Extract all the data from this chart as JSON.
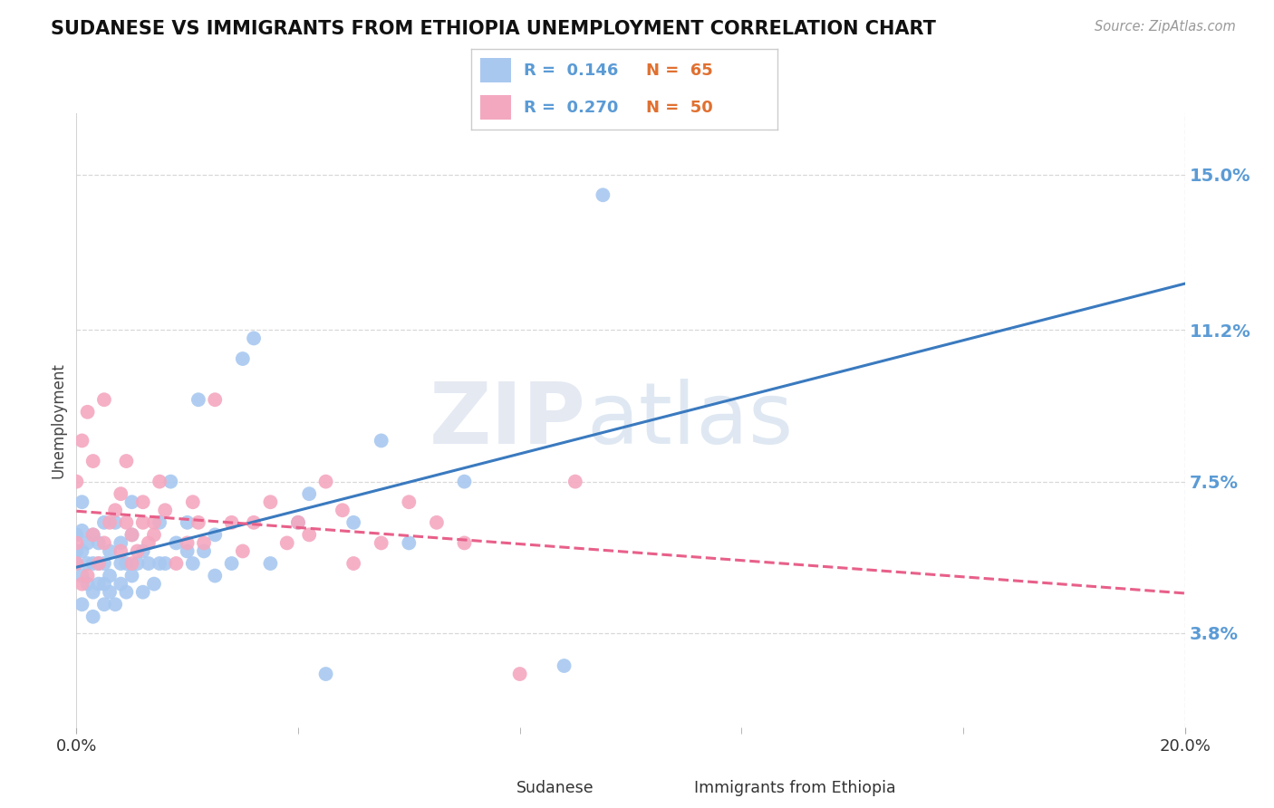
{
  "title": "SUDANESE VS IMMIGRANTS FROM ETHIOPIA UNEMPLOYMENT CORRELATION CHART",
  "source": "Source: ZipAtlas.com",
  "ylabel": "Unemployment",
  "yticks": [
    3.8,
    7.5,
    11.2,
    15.0
  ],
  "ytick_labels": [
    "3.8%",
    "7.5%",
    "11.2%",
    "15.0%"
  ],
  "xmin": 0.0,
  "xmax": 20.0,
  "ymin": 1.5,
  "ymax": 16.5,
  "sudanese_R": "0.146",
  "sudanese_N": "65",
  "ethiopia_R": "0.270",
  "ethiopia_N": "50",
  "sudanese_color": "#a8c8f0",
  "ethiopia_color": "#f4a8c0",
  "sudanese_line_color": "#3a7abf",
  "ethiopia_line_color": "#e8608a",
  "legend_label_1": "Sudanese",
  "legend_label_2": "Immigrants from Ethiopia",
  "watermark_zip": "ZIP",
  "watermark_atlas": "atlas",
  "background_color": "#ffffff",
  "grid_color": "#d8d8d8",
  "sudanese_x": [
    0.0,
    0.0,
    0.0,
    0.1,
    0.1,
    0.1,
    0.1,
    0.1,
    0.2,
    0.2,
    0.2,
    0.3,
    0.3,
    0.3,
    0.3,
    0.4,
    0.4,
    0.4,
    0.5,
    0.5,
    0.5,
    0.5,
    0.6,
    0.6,
    0.6,
    0.7,
    0.7,
    0.8,
    0.8,
    0.8,
    0.9,
    0.9,
    1.0,
    1.0,
    1.0,
    1.1,
    1.2,
    1.2,
    1.3,
    1.4,
    1.5,
    1.5,
    1.6,
    1.7,
    1.8,
    2.0,
    2.0,
    2.1,
    2.2,
    2.3,
    2.5,
    2.5,
    2.8,
    3.0,
    3.2,
    3.5,
    4.0,
    4.2,
    4.5,
    5.0,
    5.5,
    6.0,
    7.0,
    8.8,
    9.5
  ],
  "sudanese_y": [
    5.5,
    5.8,
    6.2,
    4.5,
    5.2,
    5.8,
    6.3,
    7.0,
    5.0,
    5.5,
    6.0,
    4.2,
    4.8,
    5.5,
    6.2,
    5.0,
    5.5,
    6.0,
    4.5,
    5.0,
    5.5,
    6.5,
    4.8,
    5.2,
    5.8,
    4.5,
    6.5,
    5.0,
    5.5,
    6.0,
    4.8,
    5.5,
    5.2,
    6.2,
    7.0,
    5.5,
    4.8,
    5.8,
    5.5,
    5.0,
    5.5,
    6.5,
    5.5,
    7.5,
    6.0,
    5.8,
    6.5,
    5.5,
    9.5,
    5.8,
    5.2,
    6.2,
    5.5,
    10.5,
    11.0,
    5.5,
    6.5,
    7.2,
    2.8,
    6.5,
    8.5,
    6.0,
    7.5,
    3.0,
    14.5
  ],
  "ethiopia_x": [
    0.0,
    0.0,
    0.0,
    0.1,
    0.1,
    0.2,
    0.2,
    0.3,
    0.3,
    0.4,
    0.5,
    0.5,
    0.6,
    0.7,
    0.8,
    0.8,
    0.9,
    0.9,
    1.0,
    1.0,
    1.1,
    1.2,
    1.2,
    1.3,
    1.4,
    1.4,
    1.5,
    1.6,
    1.8,
    2.0,
    2.1,
    2.2,
    2.3,
    2.5,
    2.8,
    3.0,
    3.2,
    3.5,
    3.8,
    4.0,
    4.2,
    4.5,
    4.8,
    5.0,
    5.5,
    6.0,
    6.5,
    7.0,
    8.0,
    9.0
  ],
  "ethiopia_y": [
    5.5,
    6.0,
    7.5,
    5.0,
    8.5,
    5.2,
    9.2,
    6.2,
    8.0,
    5.5,
    6.0,
    9.5,
    6.5,
    6.8,
    7.2,
    5.8,
    6.5,
    8.0,
    5.5,
    6.2,
    5.8,
    6.5,
    7.0,
    6.0,
    6.5,
    6.2,
    7.5,
    6.8,
    5.5,
    6.0,
    7.0,
    6.5,
    6.0,
    9.5,
    6.5,
    5.8,
    6.5,
    7.0,
    6.0,
    6.5,
    6.2,
    7.5,
    6.8,
    5.5,
    6.0,
    7.0,
    6.5,
    6.0,
    2.8,
    7.5
  ]
}
